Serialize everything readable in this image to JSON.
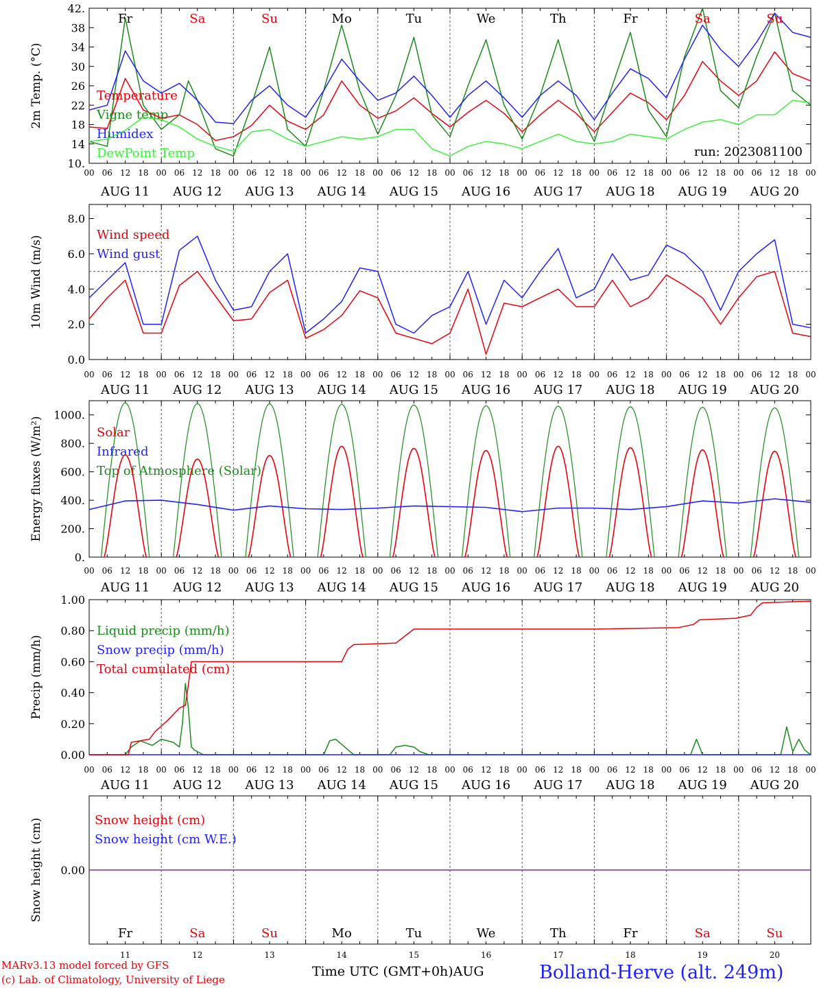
{
  "days": [
    "Fr",
    "Sa",
    "Su",
    "Mo",
    "Tu",
    "We",
    "Th",
    "Fr",
    "Sa",
    "Su"
  ],
  "weekend": [
    false,
    true,
    true,
    false,
    false,
    false,
    false,
    false,
    true,
    true
  ],
  "date_labels": [
    "AUG 11",
    "AUG 12",
    "AUG 13",
    "AUG 14",
    "AUG 15",
    "AUG 16",
    "AUG 17",
    "AUG 18",
    "AUG 19",
    "AUG 20"
  ],
  "day_numbers": [
    "11",
    "12",
    "13",
    "14",
    "15",
    "16",
    "17",
    "18",
    "19",
    "20"
  ],
  "hour_ticks": [
    "00",
    "06",
    "12",
    "18"
  ],
  "footer": {
    "model": "MARv3.13 model forced by GFS",
    "lab": "(c) Lab. of Climatology, University of Liege",
    "xlabel": "Time UTC (GMT+0h)AUG",
    "station": "Bolland-Herve (alt. 249m)"
  },
  "colors": {
    "red": "#e8000b",
    "green": "#1a8a1a",
    "blue": "#1f1fff",
    "lightgreen": "#3cf03c",
    "purple": "#7a2aa8"
  },
  "chart_data": [
    {
      "type": "line",
      "ylabel": "2m Temp. (°C)",
      "ylim": [
        10,
        42
      ],
      "yticks": [
        "10.",
        "14",
        "18",
        "22",
        "26",
        "30",
        "34",
        "38",
        "42."
      ],
      "annotation": "run: 2023081100",
      "x_unit": "hours since AUG 11 00 UTC",
      "series": [
        {
          "name": "Temperature",
          "color": "red",
          "x": [
            0,
            6,
            12,
            18,
            24,
            30,
            36,
            42,
            48,
            54,
            60,
            66,
            72,
            78,
            84,
            90,
            96,
            102,
            108,
            114,
            120,
            126,
            132,
            138,
            144,
            150,
            156,
            162,
            168,
            174,
            180,
            186,
            192,
            198,
            204,
            210,
            216,
            222,
            228,
            234,
            240
          ],
          "y": [
            17.5,
            17.2,
            27.5,
            21,
            19.3,
            20,
            18,
            14.7,
            15.5,
            17.8,
            22,
            18.7,
            17,
            20,
            27,
            22,
            19.3,
            20.8,
            23.5,
            20.3,
            17.5,
            20.5,
            23,
            20.3,
            16.5,
            20,
            23,
            20.3,
            16.5,
            20.5,
            24.5,
            22.5,
            19,
            24,
            31,
            27,
            24,
            27,
            33,
            28.5,
            27
          ]
        },
        {
          "name": "Vigne temp",
          "color": "green",
          "x": [
            0,
            6,
            12,
            18,
            24,
            30,
            33,
            36,
            42,
            48,
            54,
            60,
            66,
            72,
            78,
            84,
            90,
            96,
            102,
            108,
            114,
            120,
            126,
            132,
            138,
            144,
            150,
            156,
            162,
            168,
            174,
            180,
            186,
            192,
            198,
            204,
            210,
            216,
            222,
            228,
            234,
            240
          ],
          "y": [
            14.5,
            13.5,
            40,
            22,
            17,
            20,
            27,
            23,
            13,
            11.5,
            22,
            34,
            17,
            13.5,
            25,
            38.5,
            25,
            16,
            24,
            36,
            20,
            15.5,
            26,
            35.5,
            22,
            15,
            24,
            35.5,
            22,
            14.5,
            26,
            37,
            21,
            15.5,
            32,
            42,
            25,
            21.5,
            32,
            41,
            25,
            22
          ]
        },
        {
          "name": "Humidex",
          "color": "blue",
          "x": [
            0,
            6,
            12,
            18,
            24,
            30,
            36,
            42,
            48,
            54,
            60,
            66,
            72,
            78,
            84,
            90,
            96,
            102,
            108,
            114,
            120,
            126,
            132,
            138,
            144,
            150,
            156,
            162,
            168,
            174,
            180,
            186,
            192,
            198,
            204,
            210,
            216,
            222,
            228,
            234,
            240
          ],
          "y": [
            21,
            22,
            33.2,
            27,
            24.5,
            26.5,
            23,
            18.5,
            18.2,
            23,
            26,
            22,
            19.5,
            25,
            31.5,
            27,
            23,
            24.5,
            28,
            24,
            19.5,
            24,
            27,
            23.5,
            19.5,
            24,
            27,
            24,
            19,
            24.5,
            29.5,
            27.5,
            23.5,
            31.5,
            38.5,
            33.5,
            30,
            35,
            41,
            37,
            36
          ]
        },
        {
          "name": "DewPoint Temp",
          "color": "lightgreen",
          "x": [
            0,
            6,
            12,
            18,
            24,
            30,
            36,
            42,
            48,
            54,
            60,
            66,
            72,
            78,
            84,
            90,
            96,
            102,
            108,
            114,
            120,
            126,
            132,
            138,
            144,
            150,
            156,
            162,
            168,
            174,
            180,
            186,
            192,
            198,
            204,
            210,
            216,
            222,
            228,
            234,
            240
          ],
          "y": [
            14.5,
            15,
            16.8,
            19.5,
            19,
            17.5,
            15,
            13.5,
            12.5,
            16.5,
            17,
            15,
            13.5,
            14.5,
            15.5,
            15,
            15.5,
            17,
            17,
            13,
            11.5,
            13.5,
            14.5,
            14,
            13,
            14.5,
            16,
            14.5,
            14,
            14.5,
            16,
            15.5,
            15,
            17,
            18.5,
            19,
            18,
            20,
            20,
            23,
            22.5
          ]
        }
      ]
    },
    {
      "type": "line",
      "ylabel": "10m Wind (m/s)",
      "ylim": [
        0,
        8.8
      ],
      "yticks": [
        "0.0",
        "2.0",
        "4.0",
        "6.0",
        "8.0"
      ],
      "reference_line": 5.0,
      "x_unit": "hours since AUG 11 00 UTC",
      "series": [
        {
          "name": "Wind speed",
          "color": "red",
          "x": [
            0,
            6,
            12,
            18,
            24,
            30,
            36,
            42,
            48,
            54,
            60,
            66,
            72,
            78,
            84,
            90,
            96,
            102,
            108,
            114,
            120,
            126,
            132,
            138,
            144,
            150,
            156,
            162,
            168,
            174,
            180,
            186,
            192,
            198,
            204,
            210,
            216,
            222,
            228,
            234,
            240
          ],
          "y": [
            2.3,
            3.5,
            4.5,
            1.5,
            1.5,
            4.2,
            5.0,
            3.6,
            2.2,
            2.3,
            3.8,
            4.5,
            1.2,
            1.7,
            2.5,
            3.9,
            3.5,
            1.5,
            1.2,
            0.9,
            1.5,
            4.0,
            0.3,
            3.2,
            3.0,
            3.5,
            4.0,
            3.0,
            3.0,
            4.5,
            3.0,
            3.5,
            4.8,
            4.2,
            3.5,
            2.0,
            3.5,
            4.7,
            5.0,
            1.5,
            1.3
          ]
        },
        {
          "name": "Wind gust",
          "color": "blue",
          "x": [
            0,
            6,
            12,
            18,
            24,
            30,
            36,
            42,
            48,
            54,
            60,
            66,
            72,
            78,
            84,
            90,
            96,
            102,
            108,
            114,
            120,
            126,
            132,
            138,
            144,
            150,
            156,
            162,
            168,
            174,
            180,
            186,
            192,
            198,
            204,
            210,
            216,
            222,
            228,
            234,
            240
          ],
          "y": [
            3.5,
            4.5,
            5.5,
            2.0,
            2.0,
            6.2,
            7.0,
            4.5,
            2.8,
            3.0,
            5.0,
            6.0,
            1.5,
            2.3,
            3.3,
            5.2,
            5.0,
            2.0,
            1.5,
            2.5,
            3.0,
            5.0,
            2.0,
            4.5,
            3.5,
            5.0,
            6.3,
            3.5,
            4.0,
            6.0,
            4.5,
            4.8,
            6.5,
            6.0,
            5.0,
            2.8,
            5.0,
            6.0,
            6.8,
            2.0,
            1.8
          ]
        }
      ]
    },
    {
      "type": "line",
      "ylabel": "Energy fluxes (W/m²)",
      "ylim": [
        0,
        1100
      ],
      "yticks": [
        "0.",
        "200.",
        "400.",
        "600.",
        "800.",
        "1000."
      ],
      "x_unit": "hours since AUG 11 00 UTC",
      "toa_daily_peaks": [
        1085,
        1080,
        1078,
        1075,
        1070,
        1065,
        1062,
        1058,
        1054,
        1050
      ],
      "solar_daily_peaks": [
        720,
        690,
        715,
        780,
        765,
        750,
        780,
        770,
        755,
        745
      ],
      "series": [
        {
          "name": "Solar",
          "color": "red"
        },
        {
          "name": "Infrared",
          "color": "blue",
          "x": [
            0,
            12,
            24,
            36,
            48,
            60,
            72,
            84,
            96,
            108,
            120,
            132,
            144,
            156,
            168,
            180,
            192,
            204,
            216,
            228,
            240
          ],
          "y": [
            335,
            395,
            400,
            370,
            330,
            360,
            340,
            335,
            345,
            360,
            355,
            350,
            320,
            345,
            345,
            335,
            355,
            395,
            380,
            410,
            385
          ]
        },
        {
          "name": "Top of Atmosphere (Solar)",
          "color": "green"
        }
      ]
    },
    {
      "type": "line",
      "ylabel": "Precip (mm/h)",
      "ylim": [
        0,
        1.0
      ],
      "yticks": [
        "0.00",
        "0.20",
        "0.40",
        "0.60",
        "0.80",
        "1.00"
      ],
      "x_unit": "hours since AUG 11 00 UTC",
      "series": [
        {
          "name": "Liquid precip (mm/h)",
          "color": "green",
          "x": [
            0,
            12,
            14,
            17,
            21,
            24,
            28,
            30,
            31,
            32,
            33,
            34,
            35,
            36,
            38,
            40,
            78,
            80,
            82,
            85,
            88,
            90,
            100,
            102,
            105,
            108,
            110,
            113,
            200,
            202,
            204,
            230,
            232,
            234,
            236,
            238,
            240
          ],
          "y": [
            0,
            0,
            0.05,
            0.09,
            0.06,
            0.1,
            0.08,
            0.05,
            0.2,
            0.46,
            0.3,
            0.05,
            0.03,
            0.02,
            0,
            0,
            0,
            0.09,
            0.1,
            0.05,
            0,
            0,
            0,
            0.05,
            0.06,
            0.05,
            0.02,
            0,
            0,
            0.1,
            0,
            0,
            0.18,
            0.02,
            0.1,
            0.03,
            0
          ]
        },
        {
          "name": "Snow precip (mm/h)",
          "color": "blue",
          "x": [
            0,
            240
          ],
          "y": [
            0,
            0
          ]
        },
        {
          "name": "Total cumulated (cm)",
          "color": "red",
          "x": [
            0,
            13,
            14,
            20,
            22,
            26,
            30,
            32,
            33,
            34,
            36,
            84,
            86,
            88,
            102,
            104,
            108,
            168,
            196,
            201,
            203,
            215,
            220,
            222,
            224,
            240
          ],
          "y": [
            0,
            0,
            0.08,
            0.1,
            0.15,
            0.22,
            0.3,
            0.32,
            0.45,
            0.6,
            0.6,
            0.6,
            0.68,
            0.71,
            0.72,
            0.75,
            0.81,
            0.81,
            0.82,
            0.84,
            0.87,
            0.88,
            0.9,
            0.95,
            0.98,
            0.99
          ]
        }
      ]
    },
    {
      "type": "line",
      "ylabel": "Snow height (cm)",
      "ylim": [
        -1,
        1
      ],
      "yticks": [
        "0.00"
      ],
      "x_unit": "hours since AUG 11 00 UTC",
      "series": [
        {
          "name": "Snow height (cm)",
          "color": "red",
          "x": [
            0,
            240
          ],
          "y": [
            0,
            0
          ]
        },
        {
          "name": "Snow height (cm W.E.)",
          "color": "blue",
          "x": [
            0,
            240
          ],
          "y": [
            0,
            0
          ]
        }
      ]
    }
  ]
}
